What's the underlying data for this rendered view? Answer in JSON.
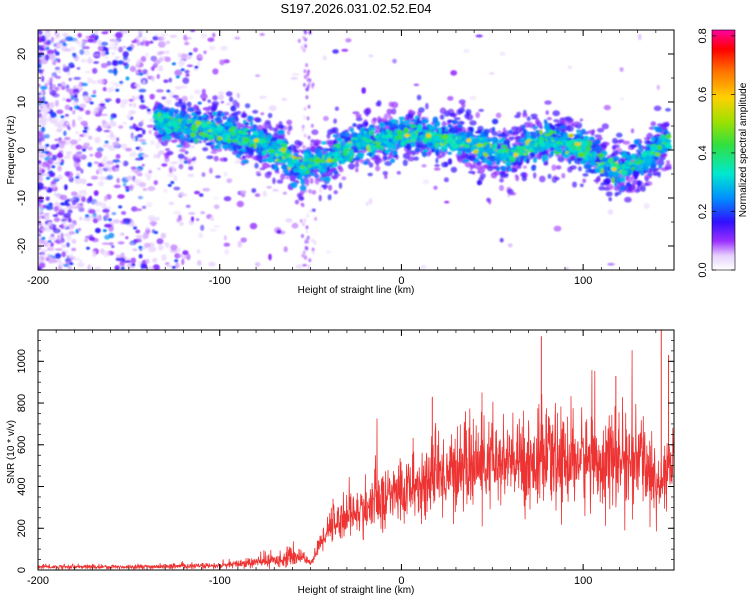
{
  "title": "S197.2026.031.02.52.E04",
  "chart_data": [
    {
      "type": "heatmap",
      "xlabel": "Height of straight line (km)",
      "ylabel": "Frequency (Hz)",
      "xlim": [
        -200,
        150
      ],
      "ylim": [
        -25,
        25
      ],
      "xticks": [
        -200,
        -100,
        0,
        100
      ],
      "yticks": [
        -20,
        -10,
        0,
        10,
        20
      ],
      "colorbar": {
        "label": "Normalized spectral amplitude",
        "range": [
          0.0,
          0.82
        ],
        "ticks": [
          "0.0",
          "0.2",
          "0.4",
          "0.6",
          "0.8"
        ],
        "tick_values": [
          0.0,
          0.2,
          0.4,
          0.6,
          0.8
        ],
        "colormap": "rainbow"
      },
      "ridge": {
        "x": [
          -135,
          -120,
          -100,
          -80,
          -65,
          -55,
          -50,
          -40,
          -30,
          -20,
          -10,
          0,
          10,
          20,
          30,
          40,
          50,
          60,
          70,
          80,
          90,
          100,
          110,
          120,
          130,
          140,
          147
        ],
        "y": [
          6,
          5,
          4,
          2,
          -1,
          -4,
          -3,
          -2,
          0,
          2,
          2,
          3,
          3,
          2,
          2,
          1,
          0,
          -1,
          1,
          2,
          1,
          0,
          -3,
          -4,
          -3,
          0,
          2
        ]
      }
    },
    {
      "type": "line",
      "xlabel": "Height of straight line (km)",
      "ylabel": "SNR (10 * v/v)",
      "xlim": [
        -200,
        150
      ],
      "ylim": [
        0,
        1150
      ],
      "xticks": [
        -200,
        -100,
        0,
        100
      ],
      "yticks": [
        0,
        200,
        400,
        600,
        800,
        1000
      ],
      "color": "#ee3333",
      "envelope": {
        "x": [
          -200,
          -150,
          -100,
          -70,
          -55,
          -50,
          -45,
          -40,
          -30,
          -20,
          -10,
          0,
          10,
          20,
          30,
          40,
          60,
          80,
          100,
          120,
          135,
          140,
          145,
          147,
          150
        ],
        "mean": [
          15,
          15,
          20,
          45,
          70,
          30,
          120,
          210,
          260,
          290,
          340,
          380,
          400,
          450,
          480,
          500,
          510,
          520,
          530,
          520,
          520,
          380,
          480,
          500,
          520
        ]
      },
      "peaks": [
        {
          "x": 77,
          "y": 1120
        },
        {
          "x": 143,
          "y": 1150
        },
        {
          "x": 147,
          "y": 1030
        },
        {
          "x": 17,
          "y": 830
        },
        {
          "x": 118,
          "y": 930
        }
      ]
    }
  ]
}
